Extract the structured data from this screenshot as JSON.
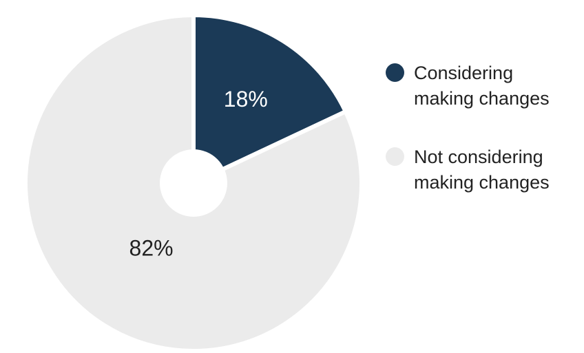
{
  "chart_data": {
    "type": "pie",
    "variant": "donut",
    "title": "",
    "categories": [
      "Considering\nmaking changes",
      "Not considering\nmaking changes"
    ],
    "values": [
      18,
      82
    ],
    "value_labels": [
      "18%",
      "82%"
    ],
    "colors": [
      "#1b3a57",
      "#ebebeb"
    ],
    "label_colors": [
      "#ffffff",
      "#222222"
    ],
    "legend_position": "right",
    "start_angle_deg": 0,
    "direction": "clockwise"
  }
}
